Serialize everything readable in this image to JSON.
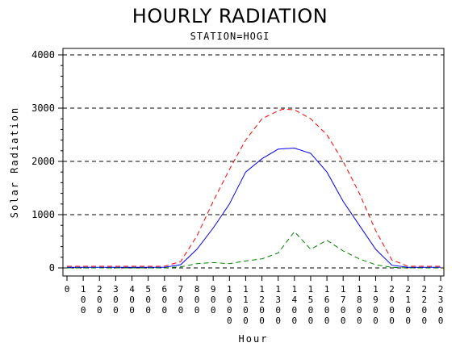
{
  "chart_data": {
    "type": "line",
    "title": "HOURLY RADIATION",
    "subtitle": "STATION=HOGI",
    "xlabel": "Hour",
    "ylabel": "Solar Radiation",
    "ylim": [
      0,
      4000
    ],
    "yticks": [
      0,
      1000,
      2000,
      3000,
      4000
    ],
    "grid": "horizontal dashed",
    "legend": "none",
    "categories": [
      "0",
      "100",
      "200",
      "300",
      "400",
      "500",
      "600",
      "700",
      "800",
      "900",
      "1000",
      "1100",
      "1200",
      "1300",
      "1400",
      "1500",
      "1600",
      "1700",
      "1800",
      "1900",
      "2000",
      "2100",
      "2200",
      "2300"
    ],
    "x_tick_labels": [
      "0",
      "100",
      "200",
      "300",
      "400",
      "500",
      "600",
      "700",
      "800",
      "900",
      "1000",
      "1100",
      "1200",
      "1300",
      "1400",
      "1500",
      "1600",
      "1700",
      "1800",
      "1900",
      "2000",
      "2100",
      "2200",
      "2300"
    ],
    "x": [
      0,
      100,
      200,
      300,
      400,
      500,
      600,
      700,
      800,
      900,
      1000,
      1100,
      1200,
      1300,
      1400,
      1500,
      1600,
      1700,
      1800,
      1900,
      2000,
      2100,
      2200,
      2300
    ],
    "series": [
      {
        "color": "#ff0000",
        "dash": "dashed",
        "x": [
          0,
          100,
          200,
          300,
          400,
          500,
          600,
          700,
          800,
          900,
          1000,
          1100,
          1200,
          1300,
          1330,
          1400,
          1500,
          1600,
          1700,
          1800,
          1900,
          2000,
          2100,
          2200,
          2300
        ],
        "values": [
          30,
          30,
          30,
          30,
          30,
          30,
          30,
          120,
          600,
          1250,
          1850,
          2400,
          2800,
          2950,
          2980,
          2970,
          2800,
          2500,
          2000,
          1400,
          700,
          150,
          30,
          30,
          30
        ]
      },
      {
        "color": "#0000ff",
        "dash": "solid",
        "x": [
          0,
          100,
          200,
          300,
          400,
          500,
          600,
          700,
          800,
          900,
          1000,
          1100,
          1200,
          1300,
          1400,
          1500,
          1600,
          1700,
          1800,
          1900,
          2000,
          2100,
          2200,
          2300
        ],
        "values": [
          10,
          10,
          10,
          10,
          10,
          10,
          10,
          60,
          350,
          750,
          1200,
          1800,
          2050,
          2230,
          2250,
          2150,
          1800,
          1250,
          800,
          350,
          50,
          10,
          10,
          10
        ]
      },
      {
        "color": "#008000",
        "dash": "dashed",
        "x": [
          0,
          100,
          200,
          300,
          400,
          500,
          600,
          700,
          800,
          900,
          1000,
          1100,
          1200,
          1300,
          1400,
          1500,
          1600,
          1700,
          1800,
          1900,
          2000,
          2100,
          2200,
          2300
        ],
        "values": [
          0,
          0,
          0,
          0,
          0,
          0,
          0,
          20,
          80,
          100,
          80,
          130,
          170,
          280,
          680,
          350,
          520,
          320,
          170,
          60,
          10,
          0,
          0,
          0
        ]
      }
    ]
  }
}
